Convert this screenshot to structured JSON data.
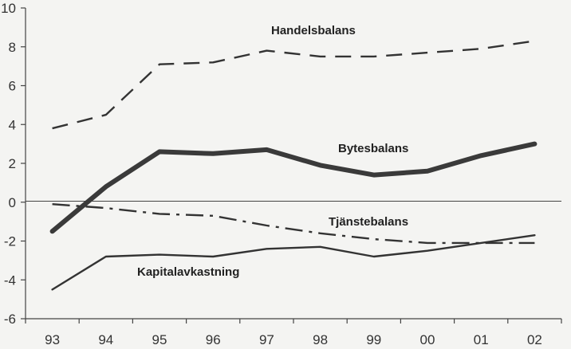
{
  "chart_data": {
    "type": "line",
    "x": [
      "93",
      "94",
      "95",
      "96",
      "97",
      "98",
      "99",
      "00",
      "01",
      "02"
    ],
    "ylim": [
      -6,
      10
    ],
    "yticks": [
      -6,
      -4,
      -2,
      0,
      2,
      4,
      6,
      8,
      10
    ],
    "grid": false,
    "series": [
      {
        "name": "Handelsbalans",
        "values": [
          3.8,
          4.5,
          7.1,
          7.2,
          7.8,
          7.5,
          7.5,
          7.7,
          7.9,
          8.3
        ],
        "style": "dashed",
        "color": "#333333"
      },
      {
        "name": "Bytesbalans",
        "values": [
          -1.5,
          0.8,
          2.6,
          2.5,
          2.7,
          1.9,
          1.4,
          1.6,
          2.4,
          3.0
        ],
        "style": "thick",
        "color": "#3a3a3a"
      },
      {
        "name": "Tjänstebalans",
        "values": [
          -0.1,
          -0.3,
          -0.6,
          -0.7,
          -1.2,
          -1.6,
          -1.9,
          -2.1,
          -2.1,
          -2.1
        ],
        "style": "dash-dot",
        "color": "#333333"
      },
      {
        "name": "Kapitalavkastning",
        "values": [
          -4.5,
          -2.8,
          -2.7,
          -2.8,
          -2.4,
          -2.3,
          -2.8,
          -2.5,
          -2.1,
          -1.7
        ],
        "style": "solid",
        "color": "#333333"
      }
    ]
  }
}
